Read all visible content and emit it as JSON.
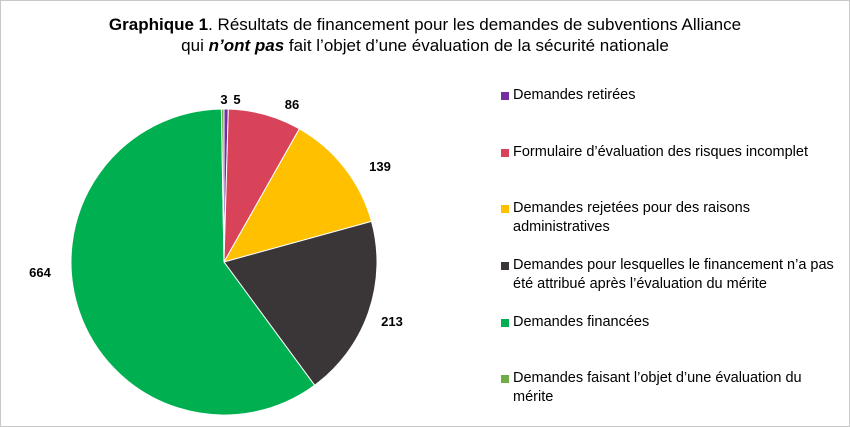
{
  "chart_data": {
    "type": "pie",
    "title_bold": "Graphique 1",
    "title_rest": ". Résultats de financement pour les demandes de subventions Alliance",
    "title_line2_pre": "qui ",
    "title_line2_em": "n’ont pas",
    "title_line2_post": " fait l’objet d’une évaluation de la sécurité nationale",
    "legend_position": "right",
    "slices": [
      {
        "name": "Demandes retirées",
        "value": 5,
        "label": "5",
        "color": "#7030A0"
      },
      {
        "name": "Formulaire d’évaluation des risques incomplet",
        "value": 86,
        "label": "86",
        "color": "#D9435A"
      },
      {
        "name": "Demandes rejetées pour des raisons administratives",
        "value": 139,
        "label": "139",
        "color": "#FFC000"
      },
      {
        "name": "Demandes pour lesquelles le financement n’a pas été attribué après l’évaluation du mérite",
        "value": 213,
        "label": "213",
        "color": "#3A3536"
      },
      {
        "name": "Demandes financées",
        "value": 664,
        "label": "664",
        "color": "#00B050"
      },
      {
        "name": "Demandes faisant l’objet d’une évaluation du mérite",
        "value": 3,
        "label": "3",
        "color": "#70AD47"
      }
    ]
  }
}
